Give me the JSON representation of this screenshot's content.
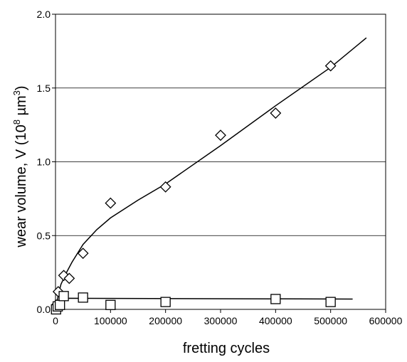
{
  "chart_data": {
    "type": "scatter",
    "title": "",
    "xlabel": "fretting cycles",
    "ylabel_parts": {
      "prefix": "wear volume, V (10",
      "exp1": "8",
      "mid": " µm",
      "exp2": "3",
      "suffix": ")"
    },
    "xlim": [
      0,
      600000
    ],
    "ylim": [
      0,
      2.0
    ],
    "x_ticks": [
      0,
      100000,
      200000,
      300000,
      400000,
      500000,
      600000
    ],
    "x_tick_labels": [
      "0",
      "100000",
      "200000",
      "300000",
      "400000",
      "500000",
      "600000"
    ],
    "y_ticks": [
      0,
      0.5,
      1.0,
      1.5,
      2.0
    ],
    "y_tick_labels": [
      "0.0",
      "0.5",
      "1.0",
      "1.5",
      "2.0"
    ],
    "grid": "horizontal",
    "legend": "none",
    "series": [
      {
        "marker": "diamond",
        "points": [
          {
            "x": 2000,
            "y": 0.03
          },
          {
            "x": 5000,
            "y": 0.12
          },
          {
            "x": 15000,
            "y": 0.23
          },
          {
            "x": 25000,
            "y": 0.21
          },
          {
            "x": 50000,
            "y": 0.38
          },
          {
            "x": 100000,
            "y": 0.72
          },
          {
            "x": 200000,
            "y": 0.83
          },
          {
            "x": 300000,
            "y": 1.18
          },
          {
            "x": 400000,
            "y": 1.33
          },
          {
            "x": 500000,
            "y": 1.65
          }
        ],
        "fit": [
          {
            "x": 1000,
            "y": 0.0
          },
          {
            "x": 5000,
            "y": 0.1
          },
          {
            "x": 10000,
            "y": 0.17
          },
          {
            "x": 20000,
            "y": 0.25
          },
          {
            "x": 30000,
            "y": 0.32
          },
          {
            "x": 50000,
            "y": 0.44
          },
          {
            "x": 75000,
            "y": 0.54
          },
          {
            "x": 100000,
            "y": 0.62
          },
          {
            "x": 150000,
            "y": 0.74
          },
          {
            "x": 200000,
            "y": 0.85
          },
          {
            "x": 300000,
            "y": 1.11
          },
          {
            "x": 400000,
            "y": 1.38
          },
          {
            "x": 500000,
            "y": 1.64
          },
          {
            "x": 565000,
            "y": 1.84
          }
        ]
      },
      {
        "marker": "square",
        "points": [
          {
            "x": 1000,
            "y": 0.0
          },
          {
            "x": 4000,
            "y": 0.02
          },
          {
            "x": 8000,
            "y": 0.03
          },
          {
            "x": 15000,
            "y": 0.09
          },
          {
            "x": 50000,
            "y": 0.08
          },
          {
            "x": 100000,
            "y": 0.03
          },
          {
            "x": 200000,
            "y": 0.05
          },
          {
            "x": 400000,
            "y": 0.07
          },
          {
            "x": 500000,
            "y": 0.05
          }
        ],
        "fit": [
          {
            "x": 1000,
            "y": 0.0
          },
          {
            "x": 5000,
            "y": 0.05
          },
          {
            "x": 10000,
            "y": 0.07
          },
          {
            "x": 20000,
            "y": 0.075
          },
          {
            "x": 540000,
            "y": 0.07
          }
        ]
      }
    ]
  }
}
